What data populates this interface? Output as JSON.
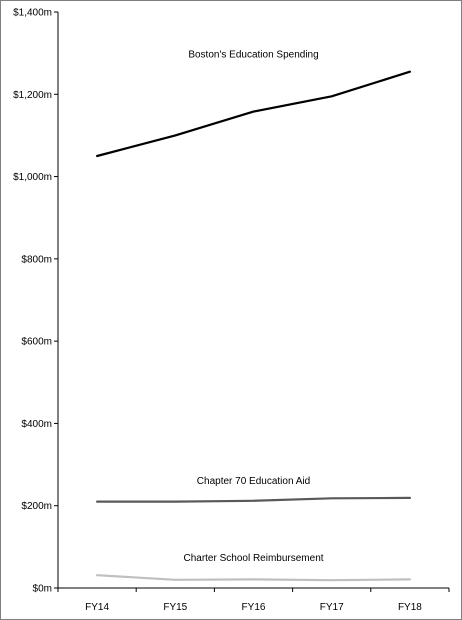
{
  "chart_data": {
    "type": "line",
    "title": "",
    "xlabel": "",
    "ylabel": "",
    "categories": [
      "FY14",
      "FY15",
      "FY16",
      "FY17",
      "FY18"
    ],
    "ylim": [
      0,
      1400
    ],
    "y_ticks": [
      0,
      200,
      400,
      600,
      800,
      1000,
      1200,
      1400
    ],
    "y_tick_labels": [
      "$0m",
      "$200m",
      "$400m",
      "$600m",
      "$800m",
      "$1,000m",
      "$1,200m",
      "$1,400m"
    ],
    "grid": false,
    "legend": "none",
    "series": [
      {
        "name": "Boston's Education Spending",
        "values": [
          1050,
          1100,
          1158,
          1195,
          1255
        ],
        "color": "#000000"
      },
      {
        "name": "Chapter 70 Education Aid",
        "values": [
          210,
          210,
          212,
          218,
          219
        ],
        "color": "#595959"
      },
      {
        "name": "Charter School Reimbursement",
        "values": [
          31,
          20,
          21,
          19,
          21
        ],
        "color": "#bfbfbf"
      }
    ]
  }
}
